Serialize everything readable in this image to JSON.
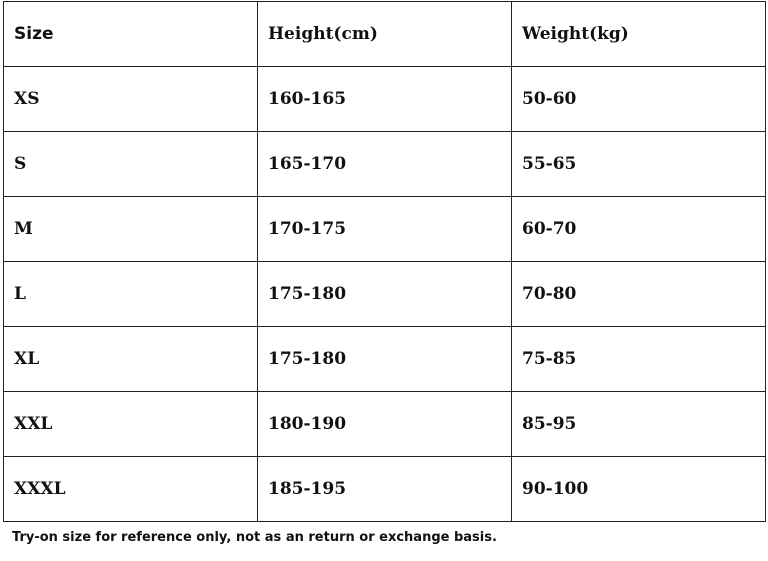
{
  "table": {
    "header": [
      "Size",
      "Height(cm)",
      "Weight(kg)"
    ],
    "rows": [
      [
        "XS",
        "160-165",
        "50-60"
      ],
      [
        "S",
        "165-170",
        "55-65"
      ],
      [
        "M",
        "170-175",
        "60-70"
      ],
      [
        "L",
        "175-180",
        "70-80"
      ],
      [
        "XL",
        "175-180",
        "75-85"
      ],
      [
        "XXL",
        "180-190",
        "85-95"
      ],
      [
        "XXXL",
        "185-195",
        "90-100"
      ]
    ]
  },
  "note": "Try-on size for reference only, not as an return or exchange basis."
}
